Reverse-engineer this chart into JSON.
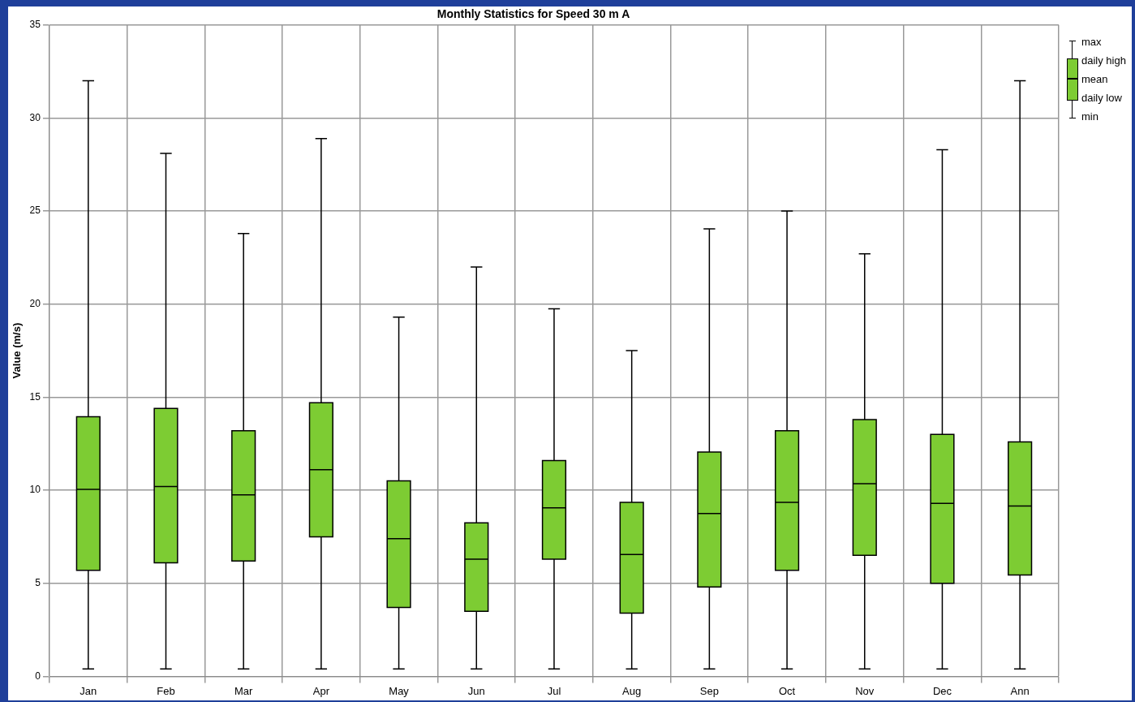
{
  "chart_data": {
    "type": "box",
    "title": "Monthly Statistics for Speed 30 m A",
    "ylabel": "Value (m/s)",
    "categories": [
      "Jan",
      "Feb",
      "Mar",
      "Apr",
      "May",
      "Jun",
      "Jul",
      "Aug",
      "Sep",
      "Oct",
      "Nov",
      "Dec",
      "Ann"
    ],
    "color": "#7dcc33",
    "boxes": [
      {
        "low": 0.4,
        "q1": 5.7,
        "median": 10.05,
        "q3": 13.95,
        "high": 32.0
      },
      {
        "low": 0.4,
        "q1": 6.1,
        "median": 10.2,
        "q3": 14.4,
        "high": 28.1
      },
      {
        "low": 0.4,
        "q1": 6.2,
        "median": 9.75,
        "q3": 13.2,
        "high": 23.8
      },
      {
        "low": 0.4,
        "q1": 7.5,
        "median": 11.1,
        "q3": 14.7,
        "high": 28.9
      },
      {
        "low": 0.4,
        "q1": 3.7,
        "median": 7.4,
        "q3": 10.5,
        "high": 19.3
      },
      {
        "low": 0.4,
        "q1": 3.5,
        "median": 6.3,
        "q3": 8.25,
        "high": 22.0
      },
      {
        "low": 0.4,
        "q1": 6.3,
        "median": 9.05,
        "q3": 11.6,
        "high": 19.75
      },
      {
        "low": 0.4,
        "q1": 3.4,
        "median": 6.55,
        "q3": 9.35,
        "high": 17.5
      },
      {
        "low": 0.4,
        "q1": 4.8,
        "median": 8.75,
        "q3": 12.05,
        "high": 24.05
      },
      {
        "low": 0.4,
        "q1": 5.7,
        "median": 9.35,
        "q3": 13.2,
        "high": 25.0
      },
      {
        "low": 0.4,
        "q1": 6.5,
        "median": 10.35,
        "q3": 13.8,
        "high": 22.7
      },
      {
        "low": 0.4,
        "q1": 5.0,
        "median": 9.3,
        "q3": 13.0,
        "high": 28.3
      },
      {
        "low": 0.4,
        "q1": 5.45,
        "median": 9.15,
        "q3": 12.6,
        "high": 32.0
      }
    ],
    "ylim": [
      0,
      35
    ],
    "yticks": [
      0,
      5,
      10,
      15,
      20,
      25,
      30,
      35
    ],
    "grid": true,
    "annotations": [
      "max",
      "daily high",
      "mean",
      "daily low",
      "min"
    ]
  }
}
